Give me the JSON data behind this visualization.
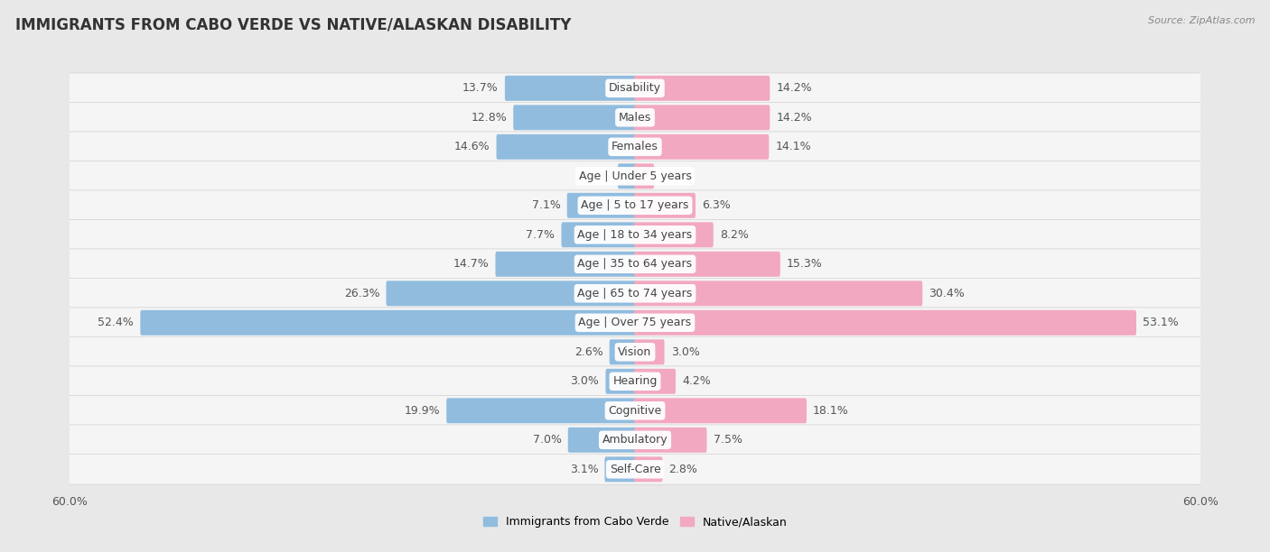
{
  "title": "IMMIGRANTS FROM CABO VERDE VS NATIVE/ALASKAN DISABILITY",
  "source": "Source: ZipAtlas.com",
  "categories": [
    "Disability",
    "Males",
    "Females",
    "Age | Under 5 years",
    "Age | 5 to 17 years",
    "Age | 18 to 34 years",
    "Age | 35 to 64 years",
    "Age | 65 to 74 years",
    "Age | Over 75 years",
    "Vision",
    "Hearing",
    "Cognitive",
    "Ambulatory",
    "Self-Care"
  ],
  "cabo_verde": [
    13.7,
    12.8,
    14.6,
    1.7,
    7.1,
    7.7,
    14.7,
    26.3,
    52.4,
    2.6,
    3.0,
    19.9,
    7.0,
    3.1
  ],
  "native": [
    14.2,
    14.2,
    14.1,
    1.9,
    6.3,
    8.2,
    15.3,
    30.4,
    53.1,
    3.0,
    4.2,
    18.1,
    7.5,
    2.8
  ],
  "cabo_verde_color": "#91bcde",
  "native_color": "#f2a8c0",
  "cabo_verde_label": "Immigrants from Cabo Verde",
  "native_label": "Native/Alaskan",
  "xlim": 60.0,
  "bg_color": "#e8e8e8",
  "row_color": "#f5f5f5",
  "title_fontsize": 12,
  "label_fontsize": 9,
  "value_fontsize": 9,
  "bar_height": 0.62
}
